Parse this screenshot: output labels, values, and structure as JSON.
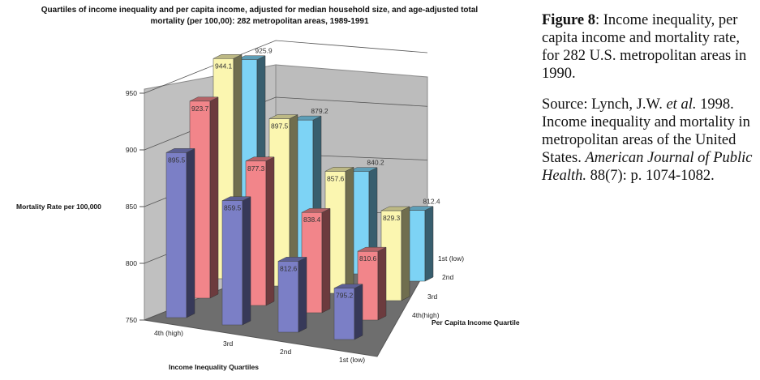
{
  "chart_data": {
    "type": "bar",
    "variant": "3d-clustered",
    "title": "Quartiles of income inequality and per capita income, adjusted for median household size, and age-adjusted total mortality (per 100,00): 282 metropolitan areas, 1989-1991",
    "xlabel": "Income Inequality Quartiles",
    "ylabel": "Mortality Rate per 100,000",
    "zlabel": "Per Capita Income Quartile",
    "categories": [
      "4th (high)",
      "3rd",
      "2nd",
      "1st (low)"
    ],
    "ylim": [
      750,
      950
    ],
    "yticks": [
      750,
      800,
      850,
      900,
      950
    ],
    "grid": true,
    "series": [
      {
        "name": "4th(high)",
        "color": "#7b7fc6",
        "values": [
          895.5,
          859.5,
          812.6,
          795.2
        ]
      },
      {
        "name": "3rd",
        "color": "#f2858a",
        "values": [
          923.7,
          877.3,
          838.4,
          810.6
        ]
      },
      {
        "name": "2nd",
        "color": "#fbf6b0",
        "values": [
          944.1,
          897.5,
          857.6,
          829.3
        ]
      },
      {
        "name": "1st (low)",
        "color": "#7dd3f5",
        "values": [
          925.9,
          879.2,
          840.2,
          812.4
        ]
      }
    ]
  },
  "caption": {
    "figure_label": "Figure 8",
    "figure_text": ": Income inequality, per capita income and mortality rate, for 282 U.S. metropolitan areas in 1990.",
    "source_prefix": "Source: Lynch, J.W. ",
    "source_etal": "et al.",
    "source_mid": " 1998. Income inequality and mortality in metropolitan areas of the United States. ",
    "source_journal": "American Journal of Public Health.",
    "source_end": " 88(7): p. 1074-1082."
  }
}
